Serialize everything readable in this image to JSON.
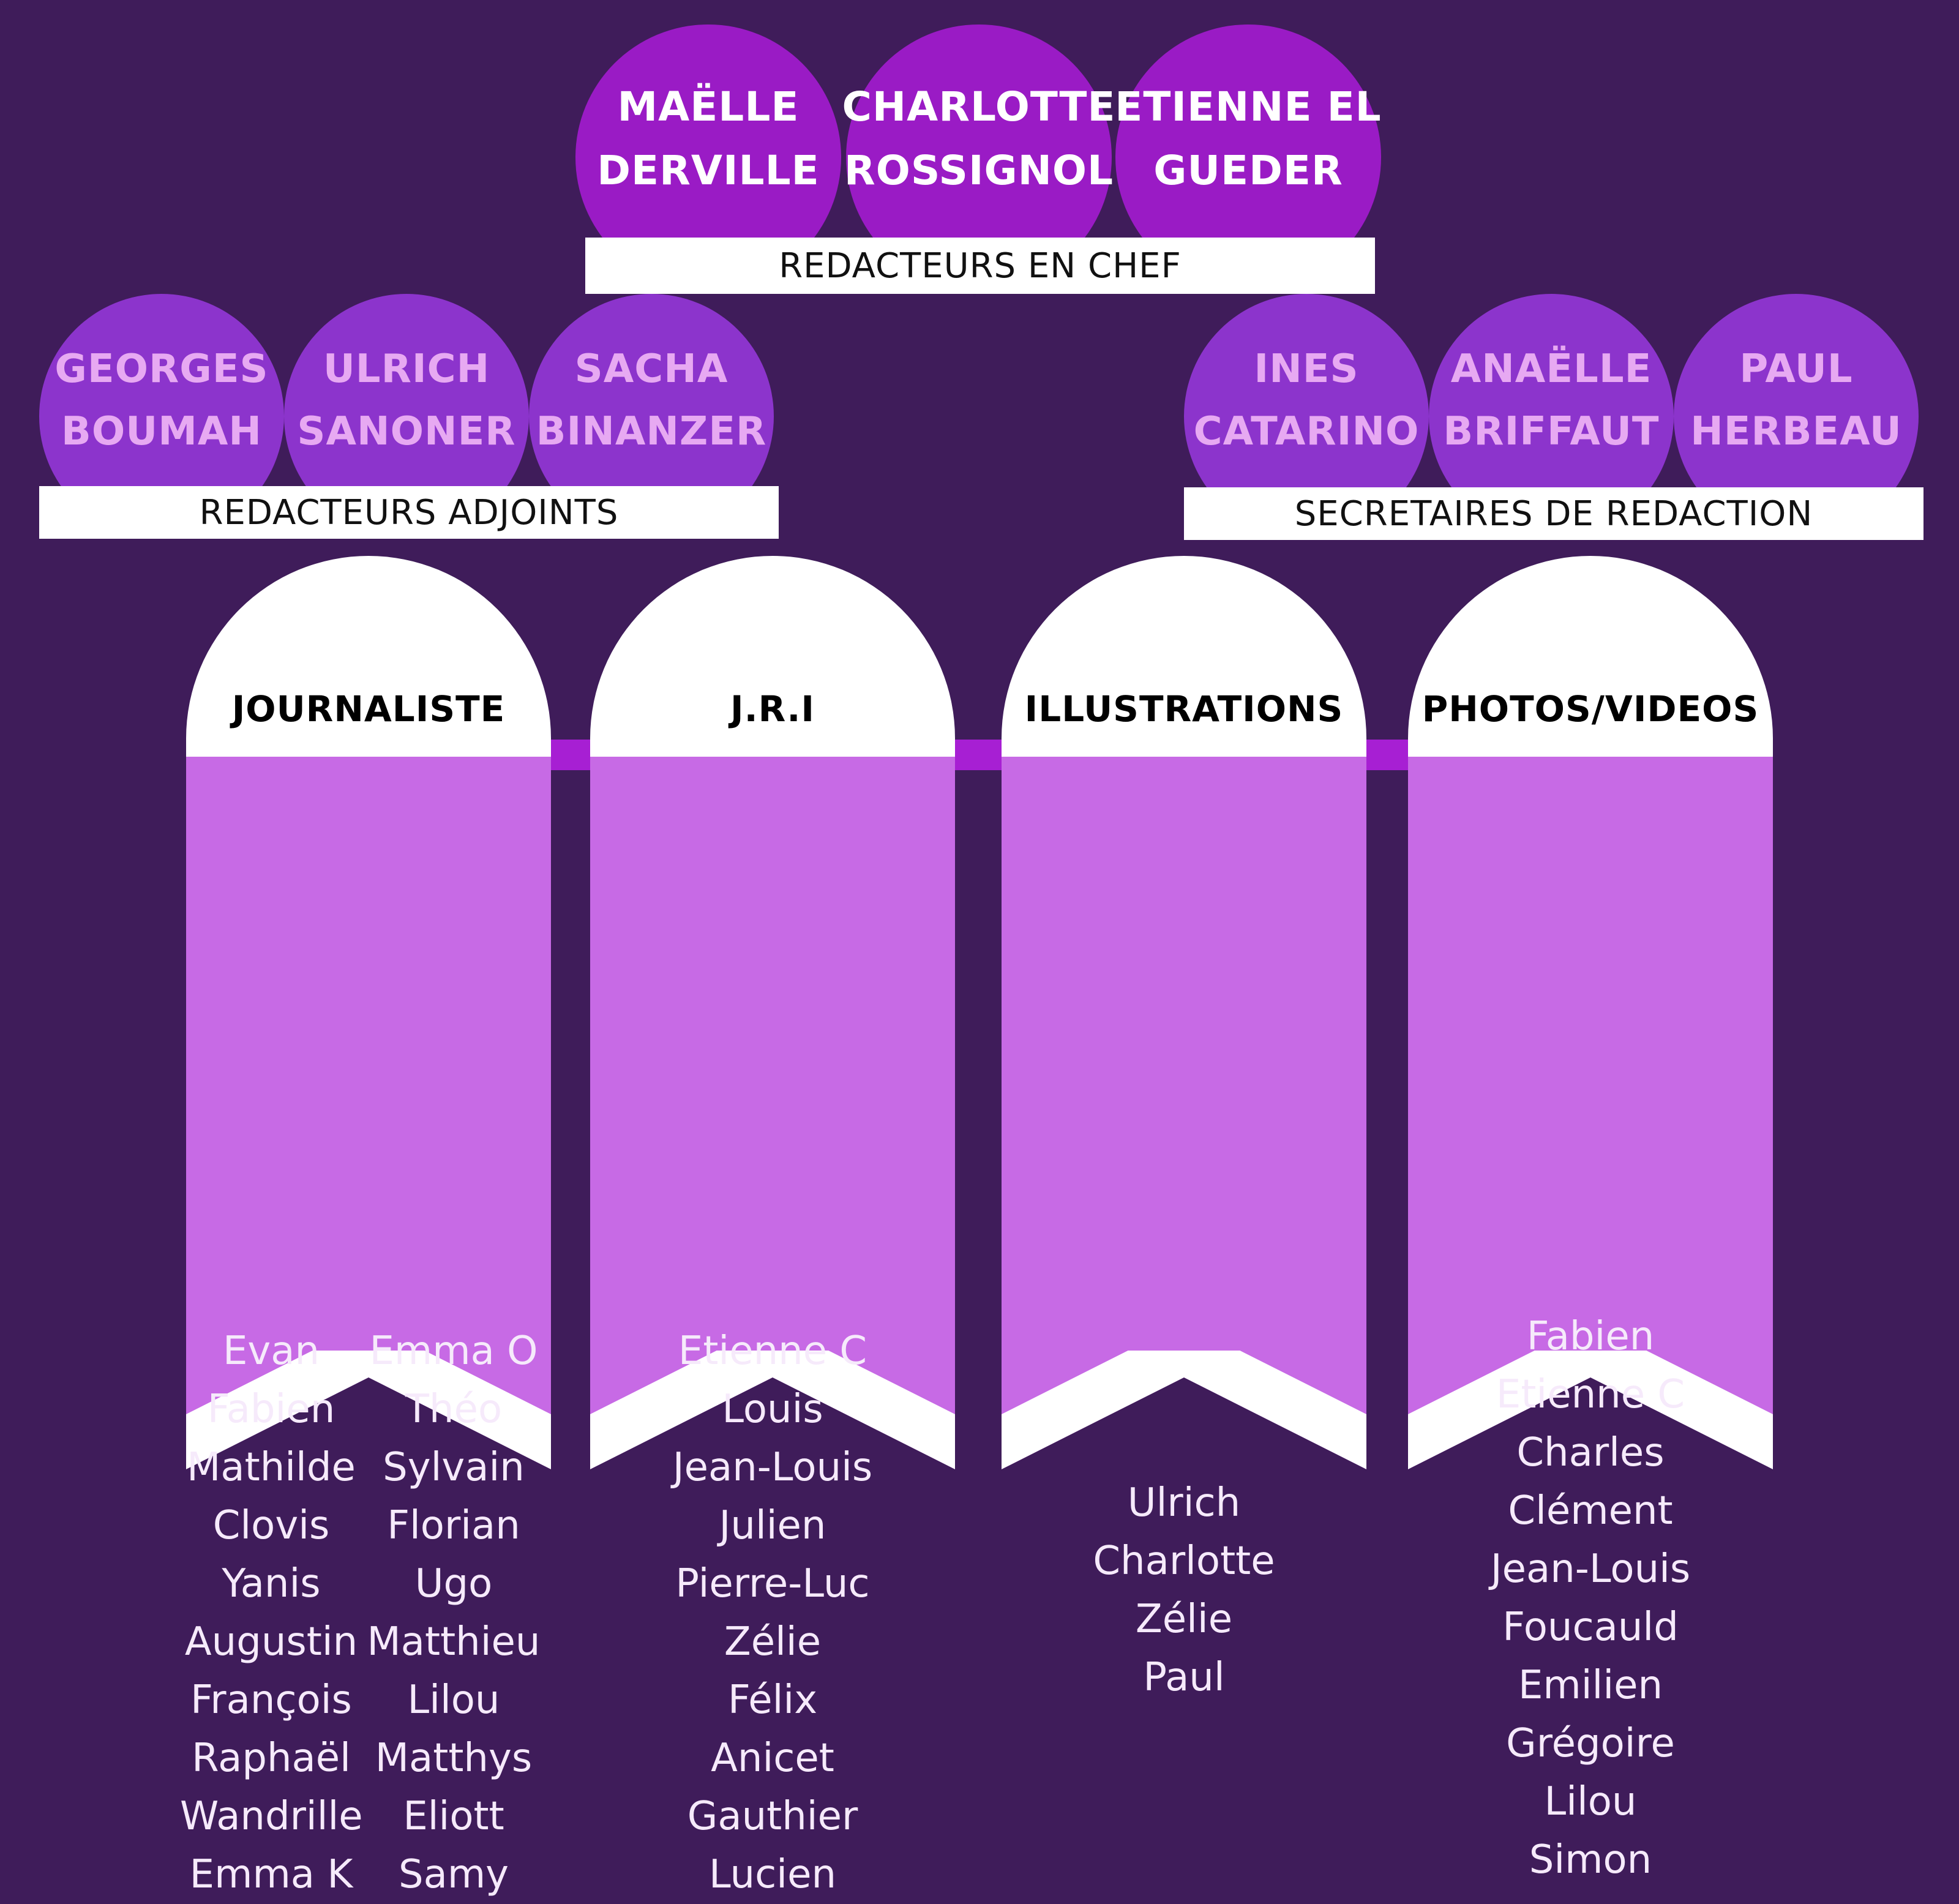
{
  "chiefs": {
    "people": [
      {
        "line1": "MAËLLE",
        "line2": "DERVILLE"
      },
      {
        "line1": "CHARLOTTE",
        "line2": "ROSSIGNOL"
      },
      {
        "line1": "ETIENNE EL",
        "line2": "GUEDER"
      }
    ],
    "label": "REDACTEURS EN CHEF"
  },
  "deputies": {
    "people": [
      {
        "line1": "GEORGES",
        "line2": "BOUMAH"
      },
      {
        "line1": "ULRICH",
        "line2": "SANONER"
      },
      {
        "line1": "SACHA",
        "line2": "BINANZER"
      }
    ],
    "label": "REDACTEURS ADJOINTS"
  },
  "secretaries": {
    "people": [
      {
        "line1": "INES",
        "line2": "CATARINO"
      },
      {
        "line1": "ANAËLLE",
        "line2": "BRIFFAUT"
      },
      {
        "line1": "PAUL",
        "line2": "HERBEAU"
      }
    ],
    "label": "SECRETAIRES DE REDACTION"
  },
  "teams": [
    {
      "title": "JOURNALISTE",
      "members_left": [
        "Evan",
        "Fabien",
        "Mathilde",
        "Clovis",
        "Yanis",
        "Augustin",
        "François",
        "Raphaël",
        "Wandrille",
        "Emma K"
      ],
      "members_right": [
        "Emma O",
        "Théo",
        "Sylvain",
        "Florian",
        "Ugo",
        "Matthieu",
        "Lilou",
        "Matthys",
        "Eliott",
        "Samy"
      ]
    },
    {
      "title": "J.R.I",
      "members": [
        "Etienne C",
        "Louis",
        "Jean-Louis",
        "Julien",
        "Pierre-Luc",
        "Zélie",
        "Félix",
        "Anicet",
        "Gauthier",
        "Lucien"
      ]
    },
    {
      "title": "ILLUSTRATIONS",
      "members": [
        "Ulrich",
        "Charlotte",
        "Zélie",
        "Paul"
      ]
    },
    {
      "title": "PHOTOS/VIDEOS",
      "members": [
        "Fabien",
        "Etienne C",
        "Charles",
        "Clément",
        "Jean-Louis",
        "Foucauld",
        "Emilien",
        "Grégoire",
        "Lilou",
        "Simon"
      ]
    }
  ],
  "colors": {
    "background": "#3f1c5a",
    "chief_circle": "#9a1bc5",
    "deputy_circle": "#8c34cc",
    "deputy_text": "#e7a9f2",
    "column_body": "#c76ae5",
    "connector": "#a71fd3"
  }
}
